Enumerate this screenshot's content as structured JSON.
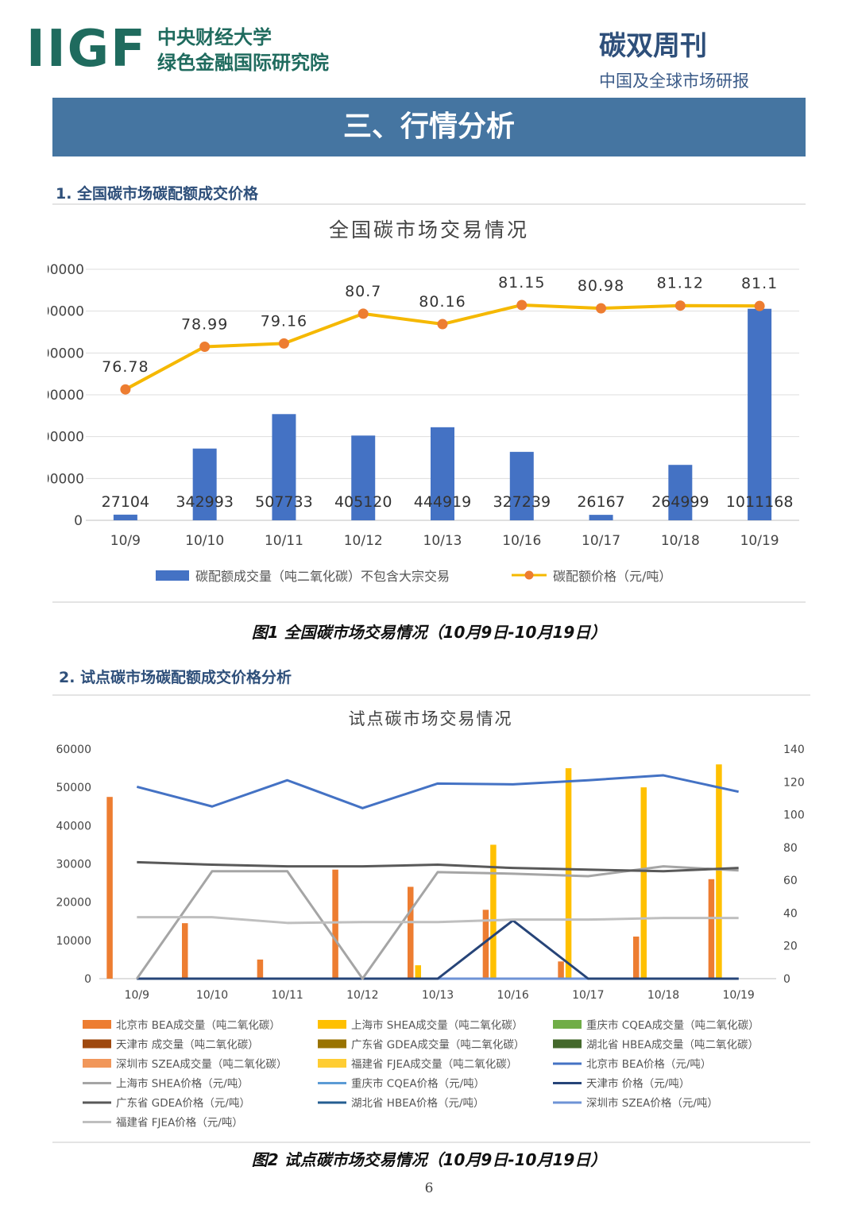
{
  "header": {
    "logo_text": "IIGF",
    "institution_line1": "中央财经大学",
    "institution_line2": "绿色金融国际研究院",
    "publication_title": "碳双周刊",
    "publication_subtitle": "中国及全球市场研报"
  },
  "section": {
    "title": "三、行情分析",
    "sub1": "1. 全国碳市场碳配额成交价格",
    "sub2": "2. 试点碳市场碳配额成交价格分析"
  },
  "colors": {
    "banner": "#4575a1",
    "bar_blue": "#4472c4",
    "line_gold": "#f5b800",
    "marker_orange": "#ed7d31"
  },
  "chart_data": [
    {
      "type": "bar",
      "title": "全国碳市场交易情况",
      "categories": [
        "10/9",
        "10/10",
        "10/11",
        "10/12",
        "10/13",
        "10/16",
        "10/17",
        "10/18",
        "10/19"
      ],
      "y_ticks": [
        "0",
        "00000",
        "00000",
        "00000",
        "00000",
        "00000",
        "00000"
      ],
      "ylim": [
        0,
        1200000
      ],
      "y2lim": [
        70,
        83
      ],
      "series": [
        {
          "name": "碳配额成交量（吨二氧化碳）不包含大宗交易",
          "kind": "bar",
          "values": [
            27104,
            342993,
            507733,
            405120,
            444919,
            327239,
            26167,
            264999,
            1011168
          ],
          "labels": [
            "27104",
            "342993",
            "507733",
            "405120",
            "444919",
            "327239",
            "26167",
            "264999",
            "1011168"
          ]
        },
        {
          "name": "碳配额价格（元/吨）",
          "kind": "line",
          "axis": "right",
          "values": [
            76.78,
            78.99,
            79.16,
            80.7,
            80.16,
            81.15,
            80.98,
            81.12,
            81.1
          ],
          "labels": [
            "76.78",
            "78.99",
            "79.16",
            "80.7",
            "80.16",
            "81.15",
            "80.98",
            "81.12",
            "81.1"
          ]
        }
      ],
      "caption": "图1 全国碳市场交易情况（10月9日-10月19日）"
    },
    {
      "type": "bar",
      "title": "试点碳市场交易情况",
      "categories": [
        "10/9",
        "10/10",
        "10/11",
        "10/12",
        "10/13",
        "10/16",
        "10/17",
        "10/18",
        "10/19"
      ],
      "y_ticks": [
        "0",
        "10000",
        "20000",
        "30000",
        "40000",
        "50000",
        "60000"
      ],
      "y2_ticks": [
        "0",
        "20",
        "40",
        "60",
        "80",
        "100",
        "120",
        "140"
      ],
      "ylim": [
        0,
        60000
      ],
      "y2lim": [
        0,
        140
      ],
      "series": [
        {
          "name": "北京市 BEA成交量（吨二氧化碳）",
          "kind": "bar",
          "color": "#ed7d31",
          "values": [
            47500,
            14500,
            5000,
            28500,
            24000,
            18000,
            4500,
            11000,
            26000
          ]
        },
        {
          "name": "上海市 SHEA成交量（吨二氧化碳）",
          "kind": "bar",
          "color": "#ffc000",
          "values": [
            0,
            0,
            0,
            0,
            3500,
            35000,
            55000,
            50000,
            56000
          ]
        },
        {
          "name": "重庆市 CQEA成交量（吨二氧化碳）",
          "kind": "bar",
          "color": "#70ad47",
          "values": [
            0,
            0,
            0,
            0,
            0,
            0,
            0,
            0,
            0
          ]
        },
        {
          "name": "天津市 成交量（吨二氧化碳）",
          "kind": "bar",
          "color": "#9e480e",
          "values": [
            0,
            0,
            0,
            0,
            0,
            0,
            0,
            0,
            0
          ]
        },
        {
          "name": "广东省 GDEA成交量（吨二氧化碳）",
          "kind": "bar",
          "color": "#997300",
          "values": [
            0,
            0,
            0,
            0,
            0,
            0,
            0,
            0,
            0
          ]
        },
        {
          "name": "湖北省 HBEA成交量（吨二氧化碳）",
          "kind": "bar",
          "color": "#43682b",
          "values": [
            0,
            0,
            0,
            0,
            0,
            0,
            0,
            0,
            0
          ]
        },
        {
          "name": "深圳市 SZEA成交量（吨二氧化碳）",
          "kind": "bar",
          "color": "#f1975a",
          "values": [
            0,
            0,
            0,
            0,
            0,
            0,
            0,
            0,
            0
          ]
        },
        {
          "name": "福建省 FJEA成交量（吨二氧化碳）",
          "kind": "bar",
          "color": "#ffcd33",
          "values": [
            0,
            0,
            0,
            0,
            0,
            0,
            0,
            0,
            0
          ]
        },
        {
          "name": "北京市 BEA价格（元/吨）",
          "kind": "line",
          "axis": "right",
          "color": "#4472c4",
          "values": [
            117,
            105,
            121,
            104,
            119,
            118.5,
            121,
            124,
            114
          ]
        },
        {
          "name": "上海市 SHEA价格（元/吨）",
          "kind": "line",
          "axis": "right",
          "color": "#a5a5a5",
          "values": [
            0,
            65.5,
            65.5,
            0,
            65,
            64,
            62.5,
            68.5,
            66
          ]
        },
        {
          "name": "重庆市 CQEA价格（元/吨）",
          "kind": "line",
          "axis": "right",
          "color": "#5b9bd5",
          "values": [
            0,
            0,
            0,
            0,
            0,
            0,
            0,
            0,
            0
          ]
        },
        {
          "name": "天津市 价格（元/吨）",
          "kind": "line",
          "axis": "right",
          "color": "#264478",
          "values": [
            0,
            0,
            0,
            0,
            0,
            35.5,
            0,
            0,
            0
          ]
        },
        {
          "name": "广东省 GDEA价格（元/吨）",
          "kind": "line",
          "axis": "right",
          "color": "#595959",
          "values": [
            71,
            69.5,
            68.5,
            68.5,
            69.5,
            67.5,
            66.5,
            65.5,
            67.5
          ]
        },
        {
          "name": "湖北省 HBEA价格（元/吨）",
          "kind": "line",
          "axis": "right",
          "color": "#255e91",
          "values": [
            0,
            0,
            0,
            0,
            0,
            0,
            0,
            0,
            0
          ]
        },
        {
          "name": "深圳市 SZEA价格（元/吨）",
          "kind": "line",
          "axis": "right",
          "color": "#6e93d6",
          "values": [
            0,
            0,
            0,
            0,
            0,
            0,
            0,
            0,
            0
          ]
        },
        {
          "name": "福建省 FJEA价格（元/吨）",
          "kind": "line",
          "axis": "right",
          "color": "#bfbfbf",
          "values": [
            37.5,
            37.5,
            34,
            34.5,
            34.5,
            36,
            36,
            37,
            37
          ]
        }
      ],
      "caption": "图2 试点碳市场交易情况（10月9日-10月19日）"
    }
  ],
  "page_number": "6"
}
